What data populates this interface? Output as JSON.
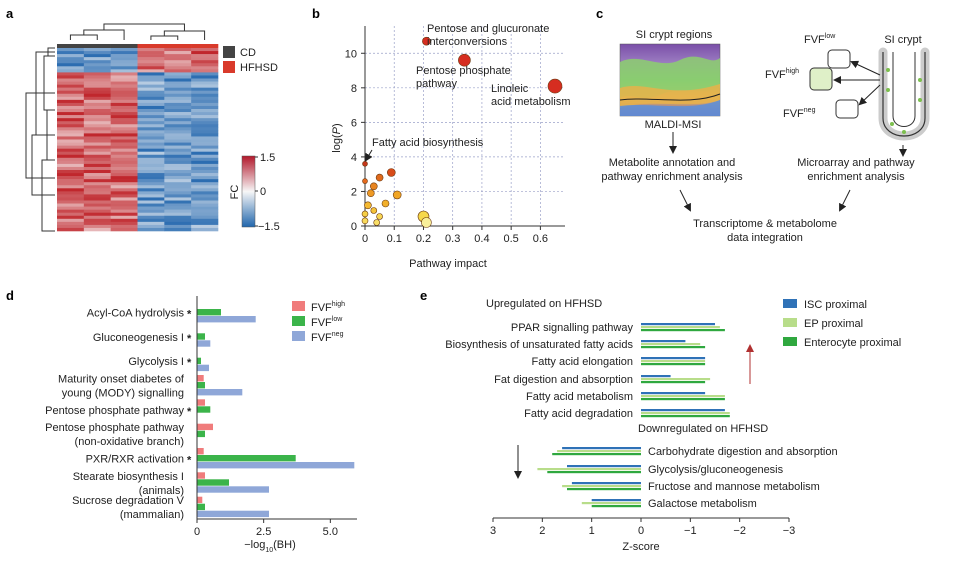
{
  "panels": {
    "a": "a",
    "b": "b",
    "c": "c",
    "d": "d",
    "e": "e"
  },
  "chart_data": [
    {
      "panel": "a",
      "type": "heatmap",
      "legend": [
        {
          "label": "CD",
          "color": "#444444"
        },
        {
          "label": "HFHSD",
          "color": "#d93a2b"
        }
      ],
      "colorbar": {
        "label": "FC",
        "max": 1.5,
        "min": -1.5,
        "max_label": "1.5",
        "zero_label": "0",
        "min_label": "−1.5",
        "colors": [
          "#c0272d",
          "#f7f7f7",
          "#2c6db1"
        ]
      },
      "columns": 6,
      "rows": 60,
      "column_groups": [
        "CD",
        "CD",
        "CD",
        "HFHSD",
        "HFHSD",
        "HFHSD"
      ]
    },
    {
      "panel": "b",
      "type": "scatter",
      "xlabel": "Pathway impact",
      "ylabel": "log(P)",
      "xlim": [
        0,
        0.65
      ],
      "ylim": [
        0,
        11
      ],
      "xticks": [
        "0",
        "0.1",
        "0.2",
        "0.3",
        "0.4",
        "0.5",
        "0.6"
      ],
      "yticks": [
        "0",
        "2",
        "4",
        "6",
        "8",
        "10"
      ],
      "grid": true,
      "points": [
        {
          "x": 0.21,
          "y": 10.7,
          "size": 4,
          "color": "#d62d20"
        },
        {
          "x": 0.34,
          "y": 9.6,
          "size": 6,
          "color": "#d62d20"
        },
        {
          "x": 0.65,
          "y": 8.1,
          "size": 7,
          "color": "#d62d20"
        },
        {
          "x": 0.0,
          "y": 3.6,
          "size": 2.5,
          "color": "#c4361a"
        },
        {
          "x": 0.09,
          "y": 3.1,
          "size": 4,
          "color": "#d84c1a"
        },
        {
          "x": 0.05,
          "y": 2.8,
          "size": 3.5,
          "color": "#e06a1d"
        },
        {
          "x": 0.03,
          "y": 2.3,
          "size": 3.5,
          "color": "#e8841f"
        },
        {
          "x": 0.0,
          "y": 2.6,
          "size": 2.5,
          "color": "#e56a1e"
        },
        {
          "x": 0.02,
          "y": 1.9,
          "size": 3.5,
          "color": "#ee9a25"
        },
        {
          "x": 0.11,
          "y": 1.8,
          "size": 4,
          "color": "#f0a526"
        },
        {
          "x": 0.07,
          "y": 1.3,
          "size": 3.5,
          "color": "#f2b02b"
        },
        {
          "x": 0.01,
          "y": 1.2,
          "size": 3.5,
          "color": "#f3b831"
        },
        {
          "x": 0.03,
          "y": 0.9,
          "size": 3,
          "color": "#f4c238"
        },
        {
          "x": 0.0,
          "y": 0.7,
          "size": 3,
          "color": "#f6cf45"
        },
        {
          "x": 0.05,
          "y": 0.55,
          "size": 3,
          "color": "#f7d552"
        },
        {
          "x": 0.0,
          "y": 0.3,
          "size": 3,
          "color": "#f8da5c"
        },
        {
          "x": 0.04,
          "y": 0.2,
          "size": 3,
          "color": "#f8de66"
        },
        {
          "x": 0.2,
          "y": 0.55,
          "size": 5.5,
          "color": "#f6d84a"
        },
        {
          "x": 0.21,
          "y": 0.2,
          "size": 5,
          "color": "#f9ef9a"
        }
      ],
      "annotations": [
        {
          "text": "Pentose and glucuronate",
          "text2": "interconversions"
        },
        {
          "text": "Pentose phosphate",
          "text2": "pathway"
        },
        {
          "text": "Linoleic",
          "text2": "acid metabolism"
        },
        {
          "text": "Fatty acid biosynthesis",
          "text2": ""
        }
      ]
    },
    {
      "panel": "d",
      "type": "bar",
      "orientation": "horizontal",
      "xlabel_main": "−log",
      "xlabel_sub": "10",
      "xlabel_end": "(BH)",
      "xlim": [
        0,
        6
      ],
      "xticks": [
        "0",
        "2.5",
        "5.0"
      ],
      "categories": [
        {
          "line1": "Acyl-CoA hydrolysis",
          "line2": "",
          "star": true
        },
        {
          "line1": "Gluconeogenesis I",
          "line2": "",
          "star": true
        },
        {
          "line1": "Glycolysis I",
          "line2": "",
          "star": true
        },
        {
          "line1": "Maturity onset diabetes of",
          "line2": "young (MODY) signalling",
          "star": false
        },
        {
          "line1": "Pentose phosphate pathway",
          "line2": "",
          "star": true
        },
        {
          "line1": "Pentose phosphate pathway",
          "line2": "(non-oxidative branch)",
          "star": false
        },
        {
          "line1": "PXR/RXR activation",
          "line2": "",
          "star": true
        },
        {
          "line1": "Stearate biosynthesis I",
          "line2": "(animals)",
          "star": false
        },
        {
          "line1": "Sucrose degradation V",
          "line2": "(mammalian)",
          "star": false
        }
      ],
      "star_text": "*",
      "series": [
        {
          "name": "FVF",
          "sup": "high",
          "color": "#f07c7c",
          "values": [
            0.0,
            0.0,
            0.0,
            0.25,
            0.3,
            0.6,
            0.25,
            0.3,
            0.2
          ]
        },
        {
          "name": "FVF",
          "sup": "low",
          "color": "#3bb44a",
          "values": [
            0.9,
            0.3,
            0.15,
            0.3,
            0.5,
            0.3,
            3.7,
            1.2,
            0.3
          ]
        },
        {
          "name": "FVF",
          "sup": "neg",
          "color": "#8fa7d8",
          "values": [
            2.2,
            0.5,
            0.45,
            1.7,
            0.0,
            0.0,
            5.9,
            2.7,
            2.7
          ]
        }
      ]
    },
    {
      "panel": "e",
      "type": "bar",
      "orientation": "horizontal",
      "xlabel": "Z-score",
      "xlim": [
        3,
        -3
      ],
      "xticks": [
        "3",
        "2",
        "1",
        "0",
        "−1",
        "−2",
        "−3"
      ],
      "up_title": "Upregulated on HFHSD",
      "down_title": "Downregulated on HFHSD",
      "categories": [
        "PPAR signalling pathway",
        "Biosynthesis of unsaturated fatty acids",
        "Fatty acid elongation",
        "Fat digestion and absorption",
        "Fatty acid metabolism",
        "Fatty acid degradation",
        "Carbohydrate digestion and absorption",
        "Glycolysis/gluconeogenesis",
        "Fructose and mannose metabolism",
        "Galactose metabolism"
      ],
      "series": [
        {
          "name": "ISC proximal",
          "color": "#2f72b7",
          "values": [
            -1.5,
            -0.9,
            -1.3,
            -0.6,
            -1.3,
            -1.7,
            1.6,
            1.5,
            1.4,
            1.0
          ]
        },
        {
          "name": "EP proximal",
          "color": "#b8dd8a",
          "values": [
            -1.6,
            -1.2,
            -1.3,
            -1.4,
            -1.7,
            -1.8,
            1.7,
            2.1,
            1.6,
            1.2
          ]
        },
        {
          "name": "Enterocyte proximal",
          "color": "#2fa83f",
          "values": [
            -1.7,
            -1.3,
            -1.3,
            -1.3,
            -1.7,
            -1.8,
            1.8,
            1.9,
            1.5,
            1.0
          ]
        }
      ]
    }
  ],
  "panel_c": {
    "crypt_regions_title": "SI crypt regions",
    "maldi_label": "MALDI-MSI",
    "crypt_title": "SI crypt",
    "fvf_low": {
      "main": "FVF",
      "sup": "low"
    },
    "fvf_high": {
      "main": "FVF",
      "sup": "high"
    },
    "fvf_neg": {
      "main": "FVF",
      "sup": "neg"
    },
    "metabolite_line1": "Metabolite annotation and",
    "metabolite_line2": "pathway enrichment analysis",
    "microarray_line1": "Microarray and pathway",
    "microarray_line2": "enrichment analysis",
    "integration_line1": "Transcriptome & metabolome",
    "integration_line2": "data integration"
  }
}
